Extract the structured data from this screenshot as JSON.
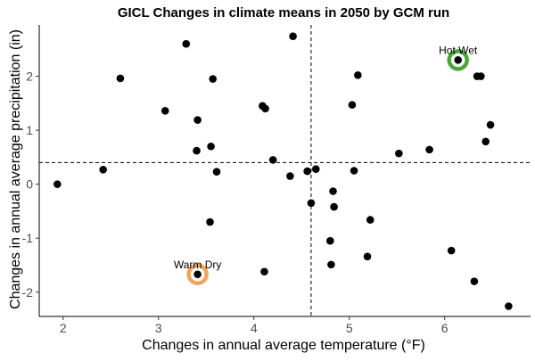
{
  "chart_data": {
    "type": "scatter",
    "title": "GICL Changes in climate means in 2050 by GCM run",
    "xlabel": "Changes in annual average temperature (°F)",
    "ylabel": "Changes in annual average precipitation (in)",
    "xlim": [
      1.75,
      6.9
    ],
    "ylim": [
      -2.45,
      2.95
    ],
    "x_ticks": [
      2,
      3,
      4,
      5,
      6
    ],
    "y_ticks": [
      -2,
      -1,
      0,
      1,
      2
    ],
    "reference_lines": {
      "x": 4.6,
      "y": 0.4
    },
    "points": [
      {
        "x": 1.94,
        "y": 0.0
      },
      {
        "x": 2.42,
        "y": 0.27
      },
      {
        "x": 2.6,
        "y": 1.96
      },
      {
        "x": 3.07,
        "y": 1.36
      },
      {
        "x": 3.29,
        "y": 2.6
      },
      {
        "x": 3.4,
        "y": 0.62
      },
      {
        "x": 3.41,
        "y": 1.19
      },
      {
        "x": 3.41,
        "y": -1.67
      },
      {
        "x": 3.54,
        "y": -0.7
      },
      {
        "x": 3.55,
        "y": 0.7
      },
      {
        "x": 3.57,
        "y": 1.95
      },
      {
        "x": 3.61,
        "y": 0.23
      },
      {
        "x": 4.09,
        "y": 1.45
      },
      {
        "x": 4.12,
        "y": 1.4
      },
      {
        "x": 4.11,
        "y": -1.62
      },
      {
        "x": 4.2,
        "y": 0.45
      },
      {
        "x": 4.38,
        "y": 0.15
      },
      {
        "x": 4.41,
        "y": 2.74
      },
      {
        "x": 4.56,
        "y": 0.24
      },
      {
        "x": 4.6,
        "y": -0.35
      },
      {
        "x": 4.65,
        "y": 0.28
      },
      {
        "x": 4.8,
        "y": -1.05
      },
      {
        "x": 4.81,
        "y": -1.49
      },
      {
        "x": 4.83,
        "y": -0.13
      },
      {
        "x": 4.84,
        "y": -0.42
      },
      {
        "x": 5.03,
        "y": 1.47
      },
      {
        "x": 5.05,
        "y": 0.25
      },
      {
        "x": 5.09,
        "y": 2.02
      },
      {
        "x": 5.19,
        "y": -1.34
      },
      {
        "x": 5.22,
        "y": -0.66
      },
      {
        "x": 5.52,
        "y": 0.57
      },
      {
        "x": 5.84,
        "y": 0.64
      },
      {
        "x": 6.07,
        "y": -1.23
      },
      {
        "x": 6.14,
        "y": 2.3
      },
      {
        "x": 6.31,
        "y": -1.8
      },
      {
        "x": 6.34,
        "y": 2.0
      },
      {
        "x": 6.38,
        "y": 2.0
      },
      {
        "x": 6.43,
        "y": 0.79
      },
      {
        "x": 6.48,
        "y": 1.1
      },
      {
        "x": 6.67,
        "y": -2.26
      }
    ],
    "highlights": [
      {
        "label": "Hot Wet",
        "x": 6.14,
        "y": 2.3,
        "color": "#4ca63a"
      },
      {
        "label": "Warm Dry",
        "x": 3.41,
        "y": -1.67,
        "color": "#f5a45a"
      }
    ],
    "grid": false,
    "legend": "none"
  }
}
